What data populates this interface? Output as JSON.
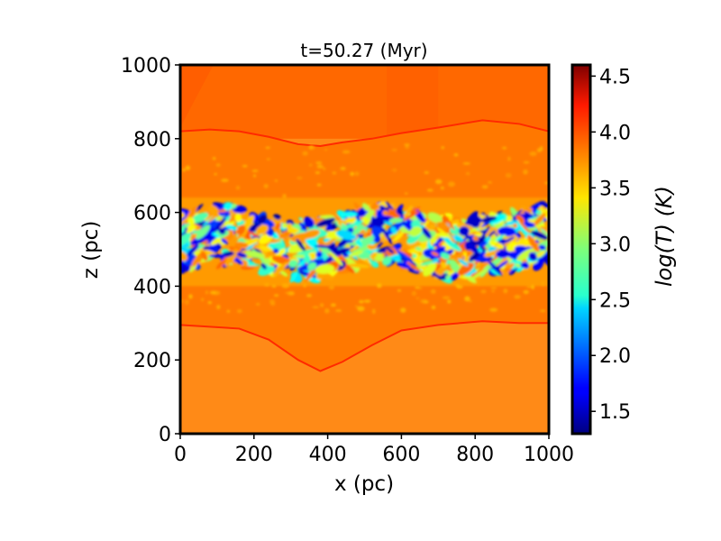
{
  "chart_data": {
    "type": "heatmap",
    "title": "t=50.27 (Myr)",
    "xlabel": "x (pc)",
    "ylabel": "z (pc)",
    "xlim": [
      0,
      1000
    ],
    "ylim": [
      0,
      1000
    ],
    "xticks": [
      "0",
      "200",
      "400",
      "600",
      "800",
      "1000"
    ],
    "yticks": [
      "0",
      "200",
      "400",
      "600",
      "800",
      "1000"
    ],
    "colorbar": {
      "label": "log(T) (K)",
      "range": [
        1.3,
        4.6
      ],
      "ticks": [
        "1.5",
        "2.0",
        "2.5",
        "3.0",
        "3.5",
        "4.0",
        "4.5"
      ],
      "colormap": "jet"
    },
    "field": {
      "description_levels": {
        "background_halo_logT": 3.85,
        "shocked_envelope_logT": 3.8,
        "disk_warm_logT": 3.6,
        "cold_clumps_logT": 1.6
      },
      "upper_shock_front_z": [
        820,
        825,
        820,
        805,
        785,
        780,
        790,
        800,
        815,
        830,
        850,
        840,
        820
      ],
      "lower_shock_front_z": [
        295,
        290,
        285,
        255,
        200,
        170,
        195,
        240,
        280,
        295,
        305,
        300,
        300
      ],
      "front_x": [
        0,
        80,
        160,
        240,
        320,
        380,
        440,
        520,
        600,
        700,
        820,
        920,
        1000
      ],
      "cold_layer_z_range": [
        400,
        640
      ]
    }
  }
}
